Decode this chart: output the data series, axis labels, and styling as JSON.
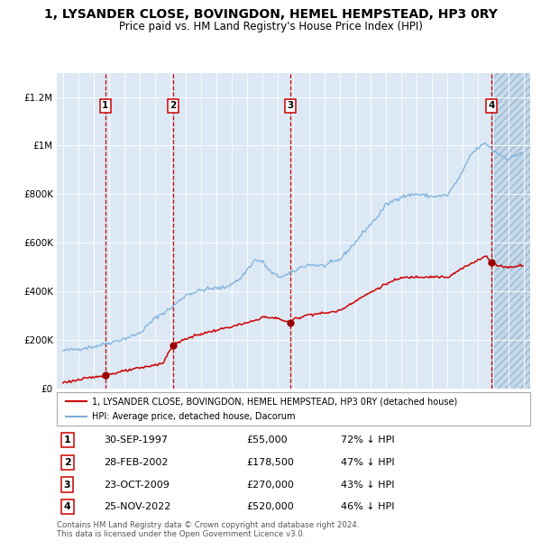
{
  "title": "1, LYSANDER CLOSE, BOVINGDON, HEMEL HEMPSTEAD, HP3 0RY",
  "subtitle": "Price paid vs. HM Land Registry's House Price Index (HPI)",
  "title_fontsize": 10,
  "subtitle_fontsize": 8.5,
  "ylim": [
    0,
    1300000
  ],
  "xlim_start": 1994.6,
  "xlim_end": 2025.4,
  "bg_color": "#dce9f5",
  "sale_dates": [
    1997.747,
    2002.16,
    2009.81,
    2022.9
  ],
  "sale_prices": [
    55000,
    178500,
    270000,
    520000
  ],
  "sale_labels": [
    "1",
    "2",
    "3",
    "4"
  ],
  "sale_date_strings": [
    "30-SEP-1997",
    "28-FEB-2002",
    "23-OCT-2009",
    "25-NOV-2022"
  ],
  "sale_price_strings": [
    "£55,000",
    "£178,500",
    "£270,000",
    "£520,000"
  ],
  "sale_hpi_strings": [
    "72% ↓ HPI",
    "47% ↓ HPI",
    "43% ↓ HPI",
    "46% ↓ HPI"
  ],
  "legend_label_red": "1, LYSANDER CLOSE, BOVINGDON, HEMEL HEMPSTEAD, HP3 0RY (detached house)",
  "legend_label_blue": "HPI: Average price, detached house, Dacorum",
  "footer_text": "Contains HM Land Registry data © Crown copyright and database right 2024.\nThis data is licensed under the Open Government Licence v3.0.",
  "red_color": "#cc0000",
  "blue_color": "#7aaedb",
  "marker_color": "#990000",
  "hpi_anchors_t": [
    1995.0,
    1996.0,
    1997.0,
    1998.0,
    1999.0,
    2000.0,
    2001.0,
    2002.0,
    2003.0,
    2004.0,
    2004.5,
    2005.5,
    2006.5,
    2007.5,
    2008.0,
    2008.5,
    2009.0,
    2009.5,
    2010.0,
    2010.5,
    2011.0,
    2012.0,
    2013.0,
    2014.0,
    2014.5,
    2015.5,
    2016.0,
    2017.0,
    2018.0,
    2019.0,
    2020.0,
    2020.5,
    2021.0,
    2021.5,
    2022.0,
    2022.5,
    2023.0,
    2023.5,
    2024.0,
    2024.8
  ],
  "hpi_anchors_v": [
    155000,
    163000,
    172000,
    188000,
    205000,
    228000,
    290000,
    330000,
    385000,
    405000,
    410000,
    415000,
    450000,
    530000,
    520000,
    480000,
    460000,
    465000,
    480000,
    500000,
    510000,
    505000,
    530000,
    600000,
    640000,
    710000,
    755000,
    790000,
    800000,
    790000,
    795000,
    840000,
    890000,
    960000,
    990000,
    1010000,
    980000,
    960000,
    945000,
    970000
  ],
  "red_anchors_t": [
    1995.0,
    1996.0,
    1997.0,
    1997.747,
    1997.76,
    1998.5,
    1999.5,
    2000.5,
    2001.5,
    2002.16,
    2002.18,
    2003.0,
    2004.0,
    2005.0,
    2006.0,
    2007.0,
    2007.5,
    2008.0,
    2008.5,
    2009.0,
    2009.5,
    2009.81,
    2009.82,
    2010.0,
    2011.0,
    2012.0,
    2013.0,
    2014.0,
    2015.0,
    2016.0,
    2017.0,
    2018.0,
    2019.0,
    2019.5,
    2020.0,
    2021.0,
    2022.0,
    2022.5,
    2022.9,
    2023.0,
    2023.5,
    2024.0,
    2024.8
  ],
  "red_anchors_v": [
    25000,
    35000,
    47000,
    55000,
    55000,
    65000,
    78000,
    90000,
    105000,
    178500,
    178500,
    205000,
    225000,
    240000,
    255000,
    270000,
    280000,
    295000,
    290000,
    290000,
    275000,
    270000,
    270000,
    285000,
    305000,
    310000,
    320000,
    360000,
    395000,
    430000,
    455000,
    460000,
    460000,
    460000,
    455000,
    495000,
    530000,
    545000,
    520000,
    510000,
    505000,
    498000,
    508000
  ]
}
